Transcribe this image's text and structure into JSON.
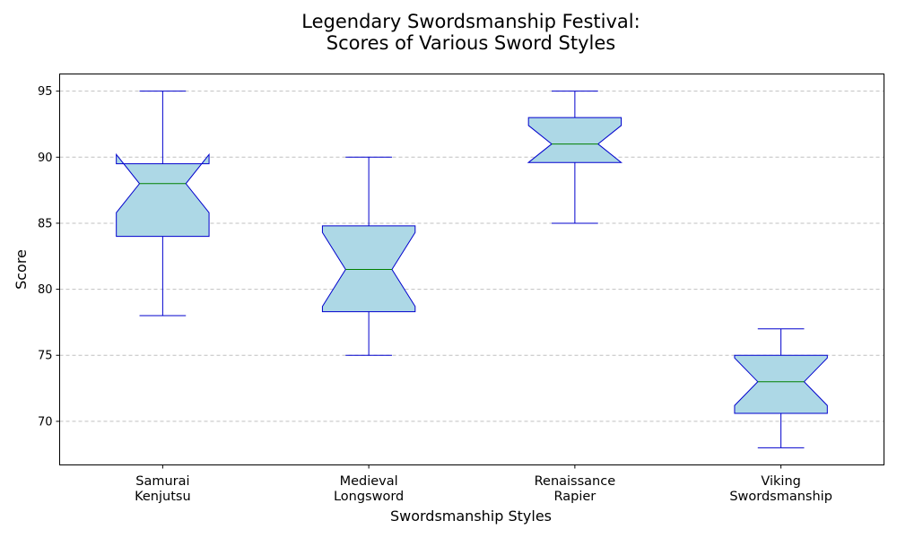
{
  "chart_data": {
    "type": "box",
    "title_lines": [
      "Legendary Swordsmanship Festival:",
      "Scores of Various Sword Styles"
    ],
    "xlabel": "Swordsmanship Styles",
    "ylabel": "Score",
    "ylim": [
      66.7,
      96.3
    ],
    "yticks": [
      70,
      75,
      80,
      85,
      90,
      95
    ],
    "grid": "y-dashed",
    "notched": true,
    "colors": {
      "box_fill": "#add8e6",
      "box_edge": "#0000cd",
      "median": "#008000",
      "grid": "#c0c0c0"
    },
    "categories": [
      {
        "lines": [
          "Samurai",
          "Kenjutsu"
        ],
        "whisker_low": 78,
        "q1": 84,
        "median": 88,
        "q3": 89.5,
        "whisker_high": 95,
        "notch_low": 85.8,
        "notch_high": 90.2
      },
      {
        "lines": [
          "Medieval",
          "Longsword"
        ],
        "whisker_low": 75,
        "q1": 78.3,
        "median": 81.5,
        "q3": 84.8,
        "whisker_high": 90,
        "notch_low": 78.7,
        "notch_high": 84.3
      },
      {
        "lines": [
          "Renaissance",
          "Rapier"
        ],
        "whisker_low": 85,
        "q1": 89.6,
        "median": 91,
        "q3": 93,
        "whisker_high": 95,
        "notch_low": 89.6,
        "notch_high": 92.4
      },
      {
        "lines": [
          "Viking",
          "Swordsmanship"
        ],
        "whisker_low": 68,
        "q1": 70.6,
        "median": 73,
        "q3": 75,
        "whisker_high": 77,
        "notch_low": 71.2,
        "notch_high": 74.8
      }
    ]
  }
}
